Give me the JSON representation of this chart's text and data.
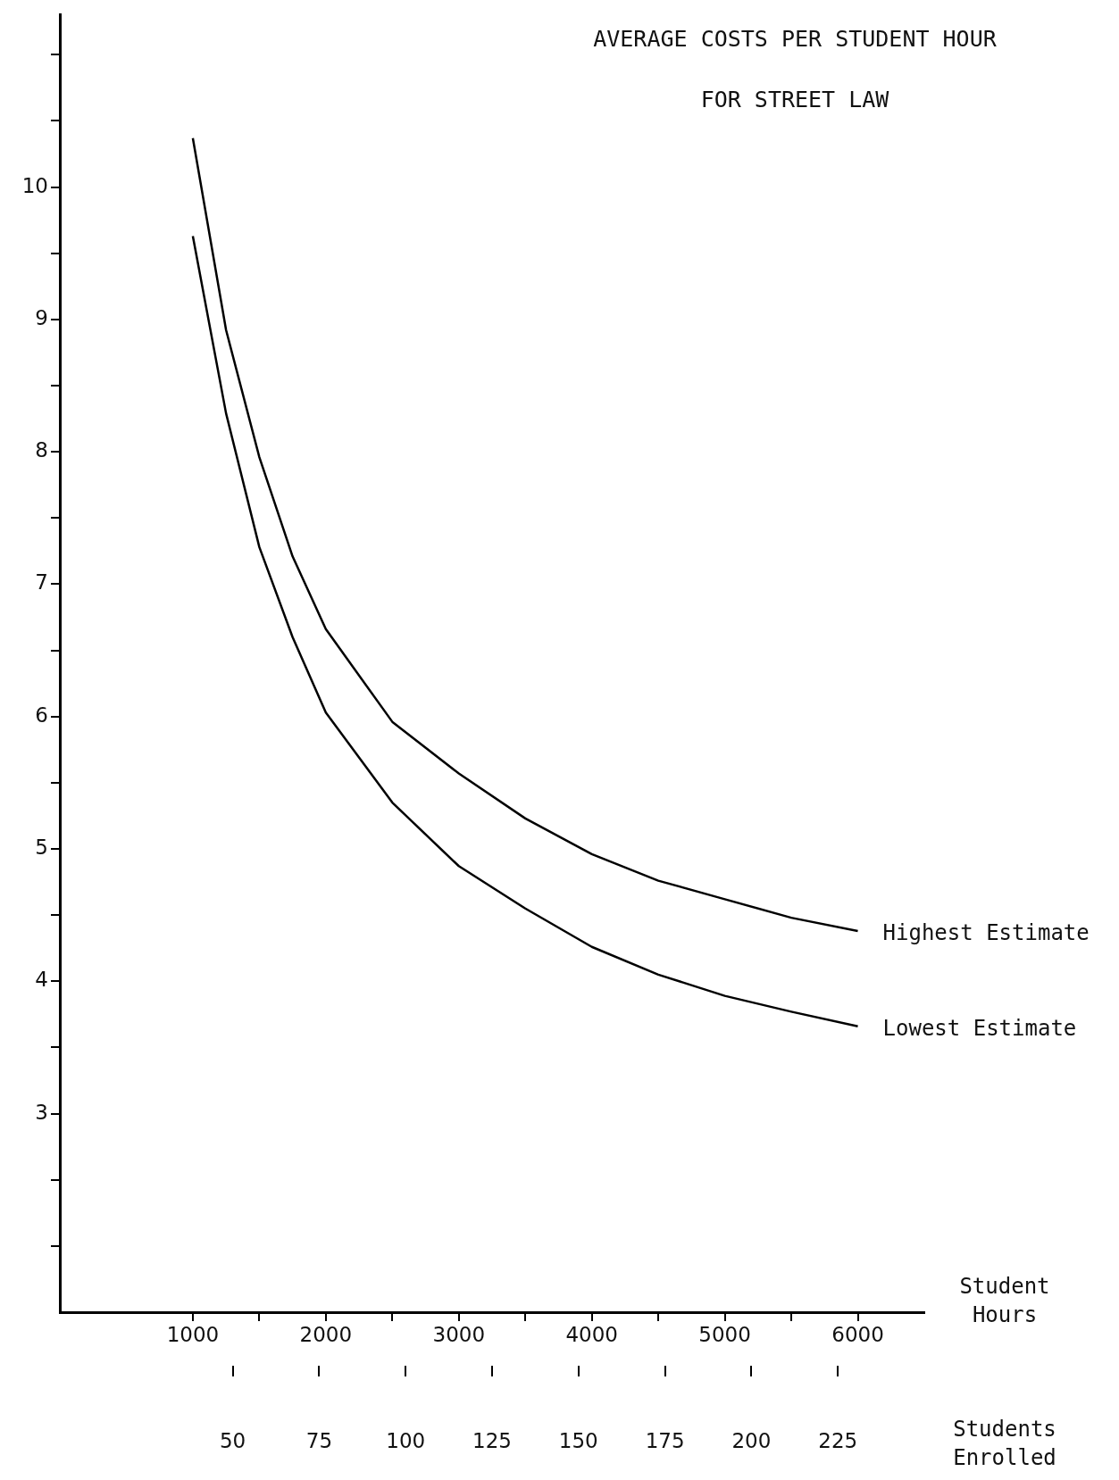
{
  "chart_data": {
    "type": "line",
    "title": "AVERAGE COSTS PER STUDENT HOUR FOR STREET LAW",
    "xlabel": "Student Hours",
    "x2label": "Students Enrolled",
    "x": [
      1000,
      1250,
      1500,
      1750,
      2000,
      2500,
      3000,
      3500,
      4000,
      4500,
      5000,
      5500,
      6000
    ],
    "series": [
      {
        "name": "Highest Estimate",
        "color": "#000000",
        "values": [
          10.37,
          8.92,
          7.96,
          7.21,
          6.66,
          5.96,
          5.57,
          5.23,
          4.96,
          4.76,
          4.62,
          4.48,
          4.38
        ]
      },
      {
        "name": "Lowest Estimate",
        "color": "#000000",
        "values": [
          9.63,
          8.29,
          7.28,
          6.6,
          6.03,
          5.35,
          4.87,
          4.55,
          4.26,
          4.05,
          3.89,
          3.77,
          3.66
        ]
      }
    ],
    "xlim": [
      0,
      6500
    ],
    "xticks": [
      1000,
      {
        "value": 1500,
        "label": null
      },
      2000,
      {
        "value": 2500,
        "label": null
      },
      3000,
      {
        "value": 3500,
        "label": null
      },
      4000,
      {
        "value": 4500,
        "label": null
      },
      5000,
      {
        "value": 5500,
        "label": null
      },
      6000
    ],
    "x2lim": [
      0,
      250
    ],
    "x2ticks": [
      50,
      75,
      100,
      125,
      150,
      175,
      200,
      225
    ],
    "ylim": [
      1.5,
      11.3
    ],
    "yticks": [
      {
        "value": 2,
        "label": null
      },
      {
        "value": 2.5,
        "label": null
      },
      3,
      {
        "value": 3.5,
        "label": null
      },
      4,
      {
        "value": 4.5,
        "label": null
      },
      5,
      {
        "value": 5.5,
        "label": null
      },
      6,
      {
        "value": 6.5,
        "label": null
      },
      7,
      {
        "value": 7.5,
        "label": null
      },
      8,
      {
        "value": 8.5,
        "label": null
      },
      9,
      {
        "value": 9.5,
        "label": null
      },
      10,
      {
        "value": 10.5,
        "label": null
      },
      {
        "value": 11,
        "label": null
      }
    ],
    "grid": false,
    "legend": false,
    "marker": "none",
    "line_style": "solid"
  }
}
